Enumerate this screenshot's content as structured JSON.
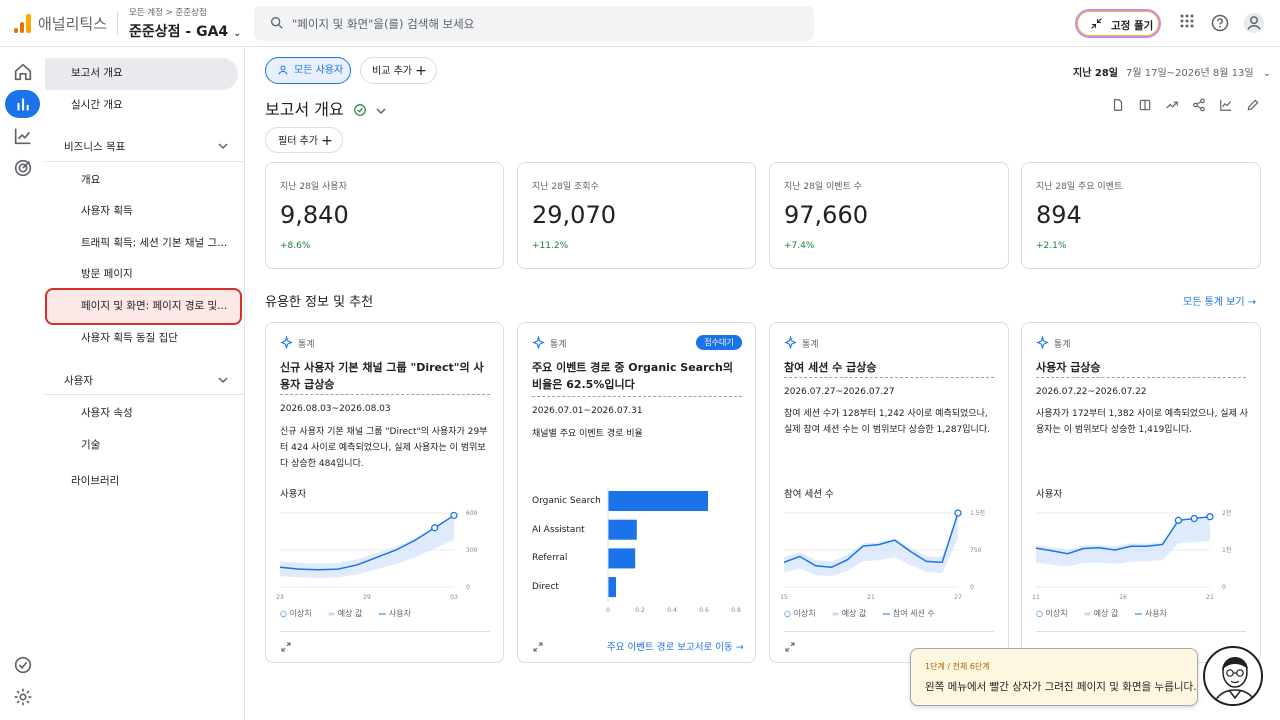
{
  "header": {
    "app_name": "애널리틱스",
    "breadcrumb": "모든 계정 > 준준상점",
    "property": "준준상점 - GA4",
    "search_placeholder": "\"페이지 및 화면\"을(를) 검색해 보세요",
    "pin_label": "고정 풀기"
  },
  "nav": {
    "overview": "보고서 개요",
    "realtime": "실시간 개요",
    "biz_section": "비즈니스 목표",
    "biz_items": [
      "개요",
      "사용자 획득",
      "트래픽 획득: 세션 기본 채널 그...",
      "방문 페이지",
      "페이지 및 화면: 페이지 경로 및...",
      "사용자 획득 동질 집단"
    ],
    "user_section": "사용자",
    "user_items": [
      "사용자 속성",
      "기술"
    ],
    "library": "라이브러리"
  },
  "toolbar": {
    "all_users": "모든 사용자",
    "add_compare": "비교 추가",
    "date_label": "지난 28일",
    "date_range": "7월 17일~2026년 8월 13일",
    "page_title": "보고서 개요",
    "add_filter": "필터 추가"
  },
  "kpis": [
    {
      "label": "지난 28일 사용자",
      "value": "9,840",
      "change": "+8.6%"
    },
    {
      "label": "지난 28일 조회수",
      "value": "29,070",
      "change": "+11.2%"
    },
    {
      "label": "지난 28일 이벤트 수",
      "value": "97,660",
      "change": "+7.4%"
    },
    {
      "label": "지난 28일 주요 이벤트",
      "value": "894",
      "change": "+2.1%"
    }
  ],
  "insights_section": {
    "title": "유용한 정보 및 추천",
    "view_all": "모든 통계 보기"
  },
  "insights": [
    {
      "kind": "통계",
      "title": "신규 사용자 기본 채널 그룹 \"Direct\"의 사용자 급상승",
      "date": "2026.08.03~2026.08.03",
      "desc": "신규 사용자 기본 채널 그룹 \"Direct\"의 사용자가 29부터 424 사이로 예측되었으나, 실제 사용자는 이 범위보다 상승한 484입니다.",
      "chart_label": "사용자",
      "legend": [
        "이상치",
        "예상 값",
        "사용자"
      ]
    },
    {
      "kind": "통계",
      "badge": "접수대기",
      "title": "주요 이벤트 경로 중 Organic Search의 비율은 62.5%입니다",
      "date": "2026.07.01~2026.07.31",
      "desc": "채널별 주요 이벤트 경로 비율",
      "link": "주요 이벤트 경로 보고서로 이동"
    },
    {
      "kind": "통계",
      "title": "참여 세션 수 급상승",
      "date": "2026.07.27~2026.07.27",
      "desc": "참여 세션 수가 128부터 1,242 사이로 예측되었으나, 실제 참여 세션 수는 이 범위보다 상승한 1,287입니다.",
      "chart_label": "참여 세션 수",
      "legend": [
        "이상치",
        "예상 값",
        "참여 세션 수"
      ]
    },
    {
      "kind": "통계",
      "title": "사용자 급상승",
      "date": "2026.07.22~2026.07.22",
      "desc": "사용자가 172부터 1,382 사이로 예측되었으나, 실제 사용자는 이 범위보다 상승한 1,419입니다.",
      "chart_label": "사용자",
      "legend": [
        "이상치",
        "예상 값",
        "사용자"
      ]
    }
  ],
  "chart_data": [
    {
      "type": "line",
      "x_ticks": [
        "23",
        "29",
        "03"
      ],
      "y_ticks": [
        "0",
        "300",
        "600"
      ],
      "series": [
        {
          "name": "사용자",
          "values": [
            160,
            145,
            140,
            145,
            180,
            240,
            300,
            380,
            480,
            580
          ]
        }
      ]
    },
    {
      "type": "bar",
      "categories": [
        "Organic Search",
        "AI Assistant",
        "Referral",
        "Direct"
      ],
      "values": [
        0.625,
        0.18,
        0.17,
        0.05
      ],
      "x_ticks": [
        "0",
        "0.2",
        "0.4",
        "0.6",
        "0.8"
      ],
      "xlim": [
        0,
        0.8
      ]
    },
    {
      "type": "line",
      "x_ticks": [
        "15",
        "21",
        "27"
      ],
      "y_ticks": [
        "0",
        "750",
        "1.5천"
      ],
      "series": [
        {
          "name": "참여 세션 수",
          "values": [
            500,
            620,
            430,
            400,
            550,
            830,
            860,
            950,
            720,
            520,
            500,
            1500
          ]
        }
      ]
    },
    {
      "type": "line",
      "x_ticks": [
        "11",
        "16",
        "21"
      ],
      "y_ticks": [
        "0",
        "1천",
        "2천"
      ],
      "series": [
        {
          "name": "사용자",
          "values": [
            1050,
            980,
            900,
            1040,
            1060,
            1000,
            1100,
            1100,
            1150,
            1800,
            1850,
            1900
          ]
        }
      ]
    }
  ],
  "tip": {
    "step": "1단계 / 전체 6단계",
    "message": "왼쪽 메뉴에서 빨간 상자가 그려진 페이지 및 화면을 누릅니다."
  }
}
